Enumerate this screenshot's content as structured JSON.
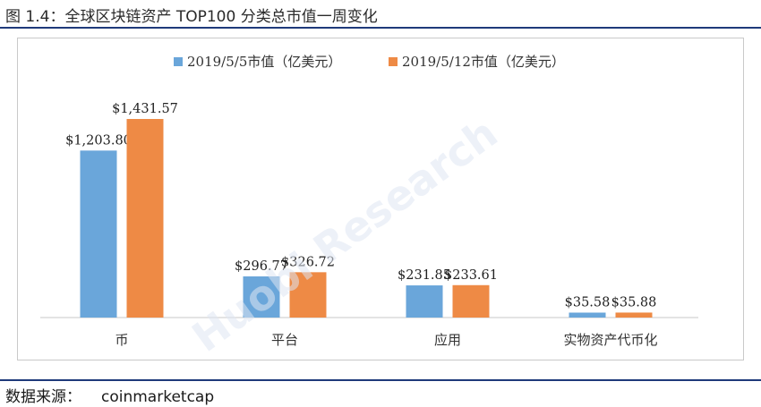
{
  "figure": {
    "title": "图 1.4：全球区块链资产 TOP100 分类总市值一周变化",
    "source_label": "数据来源：",
    "source_value": "coinmarketcap",
    "watermark": "Huobi Research"
  },
  "colors": {
    "series1": "#6aa6da",
    "series2": "#ee8a45",
    "rule": "#1f3a7a",
    "axis": "#c9c9c9"
  },
  "chart_data": {
    "type": "bar",
    "categories": [
      "币",
      "平台",
      "应用",
      "实物资产代币化"
    ],
    "series": [
      {
        "name": "2019/5/5市值（亿美元）",
        "values": [
          1203.8,
          296.77,
          231.85,
          35.58
        ],
        "labels": [
          "$1,203.80",
          "$296.77",
          "$231.85",
          "$35.58"
        ]
      },
      {
        "name": "2019/5/12市值（亿美元）",
        "values": [
          1431.57,
          326.72,
          233.61,
          35.88
        ],
        "labels": [
          "$1,431.57",
          "$326.72",
          "$233.61",
          "$35.88"
        ]
      }
    ],
    "legend_position": "top",
    "grid": false
  }
}
